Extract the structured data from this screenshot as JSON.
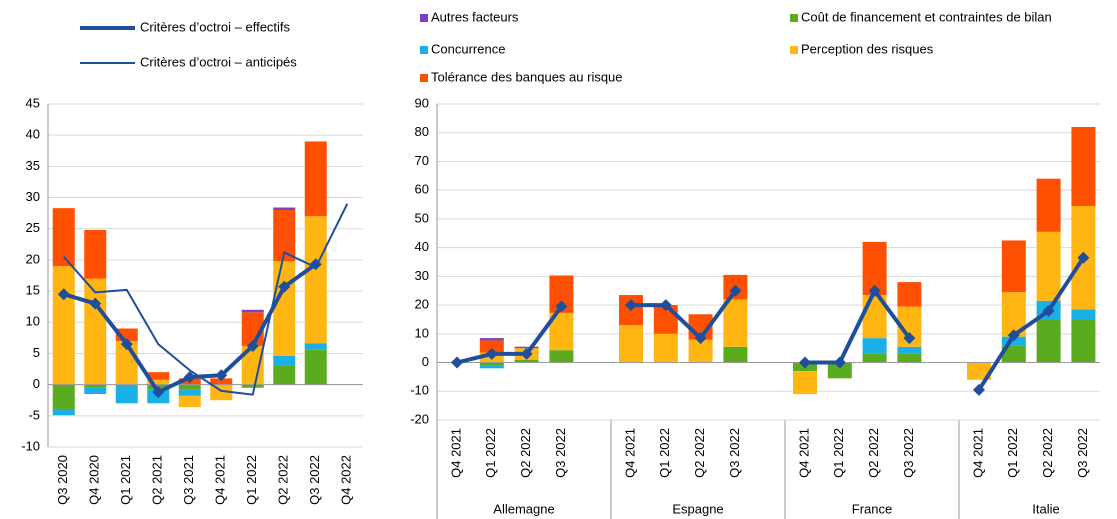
{
  "chart_data": [
    {
      "type": "bar",
      "categories": [
        "Q3 2020",
        "Q4 2020",
        "Q1 2021",
        "Q2 2021",
        "Q3 2021",
        "Q4 2021",
        "Q1 2022",
        "Q2 2022",
        "Q3 2022",
        "Q4 2022"
      ],
      "ylim": [
        -10,
        45
      ],
      "yticks": [
        -10,
        -5,
        0,
        5,
        10,
        15,
        20,
        25,
        30,
        35,
        40,
        45
      ],
      "grid": true,
      "series": [
        {
          "color": "#7b3fc4",
          "values": [
            0,
            0,
            0,
            0,
            0,
            0,
            0.4,
            0.4,
            0,
            null
          ]
        },
        {
          "color": "#5aab1e",
          "values": [
            -3.9,
            -0.5,
            0,
            -0.8,
            -0.8,
            0,
            -0.5,
            3,
            5.6,
            null
          ]
        },
        {
          "color": "#1aafe6",
          "values": [
            -1,
            -1,
            -3,
            -2.2,
            -1,
            0,
            0,
            1.6,
            1,
            null
          ]
        },
        {
          "color": "#ffb612",
          "values": [
            19,
            17,
            7,
            0.8,
            -1.8,
            -2.5,
            6.2,
            15.2,
            20.4,
            null
          ]
        },
        {
          "color": "#ff4f00",
          "values": [
            9.3,
            7.8,
            2,
            1.2,
            1,
            1,
            5.4,
            8.2,
            12,
            null
          ]
        }
      ],
      "lines": [
        {
          "name": "Critères d’octroi – effectifs",
          "color": "#1f4e9c",
          "linewidth": 4,
          "marker": "diamond",
          "values": [
            14.5,
            13,
            6.5,
            -1.2,
            1.2,
            1.5,
            6.2,
            15.7,
            19.3,
            null
          ]
        },
        {
          "name": "Critères d’octroi – anticipés",
          "color": "#1f4e9c",
          "linewidth": 2,
          "values": [
            20.5,
            14.8,
            15.2,
            6.5,
            2.3,
            -1,
            -1.6,
            21.2,
            18.8,
            29
          ]
        }
      ]
    },
    {
      "type": "bar",
      "groups": [
        {
          "name": "Allemagne",
          "categories": [
            "Q4 2021",
            "Q1 2022",
            "Q2 2022",
            "Q3 2022"
          ]
        },
        {
          "name": "Espagne",
          "categories": [
            "Q4 2021",
            "Q1 2022",
            "Q2 2022",
            "Q3 2022"
          ]
        },
        {
          "name": "France",
          "categories": [
            "Q4 2021",
            "Q1 2022",
            "Q2 2022",
            "Q3 2022"
          ]
        },
        {
          "name": "Italie",
          "categories": [
            "Q4 2021",
            "Q1 2022",
            "Q2 2022",
            "Q3 2022"
          ]
        }
      ],
      "ylim": [
        -20,
        90
      ],
      "yticks": [
        -20,
        -10,
        0,
        10,
        20,
        30,
        40,
        50,
        60,
        70,
        80,
        90
      ],
      "grid": true,
      "series": [
        {
          "name": "Autres facteurs",
          "color": "#7b3fc4",
          "values": [
            0,
            0.8,
            0.5,
            0,
            0,
            0,
            0,
            0,
            0,
            0,
            0,
            0,
            0,
            0,
            0,
            0
          ]
        },
        {
          "name": "Coût de financement et contraintes de bilan",
          "color": "#5aab1e",
          "values": [
            0,
            -1,
            1,
            4.3,
            0,
            0,
            0,
            5.5,
            -3,
            -5.5,
            3,
            3,
            0,
            6,
            15,
            15
          ]
        },
        {
          "name": "Concurrence",
          "color": "#1aafe6",
          "values": [
            0,
            -1,
            0,
            0,
            0,
            0,
            0,
            0,
            0,
            0,
            5.5,
            2.5,
            0,
            3,
            6.5,
            3.5
          ]
        },
        {
          "name": "Perception des risques",
          "color": "#ffb612",
          "values": [
            0,
            3.5,
            4,
            13,
            13,
            10,
            8,
            16.5,
            -8,
            0,
            15,
            14,
            -6,
            15.5,
            24,
            36
          ]
        },
        {
          "name": "Tolérance des banques au risque",
          "color": "#ff4f00",
          "values": [
            0,
            4.2,
            0,
            13,
            10.5,
            10,
            8.8,
            8.5,
            0,
            0,
            18.5,
            8.5,
            0,
            18,
            18.5,
            27.5
          ]
        }
      ],
      "lines": [
        {
          "color": "#1f4e9c",
          "linewidth": 4,
          "marker": "diamond",
          "values": [
            0,
            3,
            3,
            19.5,
            20,
            20,
            8.5,
            25,
            0,
            0,
            25,
            8.5,
            -9.5,
            9.5,
            18,
            36.5
          ]
        }
      ]
    }
  ]
}
